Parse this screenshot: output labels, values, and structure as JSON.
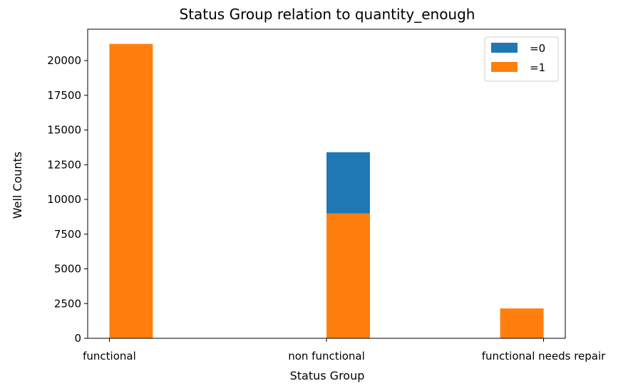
{
  "chart_data": {
    "type": "bar",
    "title": "Status Group relation to quantity_enough",
    "xlabel": "Status Group",
    "ylabel": "Well Counts",
    "categories": [
      "functional",
      "non functional",
      "functional needs repair"
    ],
    "x_bin_edges": [
      0,
      0.2,
      0.4,
      0.6,
      0.8,
      1.0,
      1.2,
      1.4,
      1.6,
      1.8,
      2.0
    ],
    "ylim": [
      0,
      22260
    ],
    "yticks": [
      0,
      2500,
      5000,
      7500,
      10000,
      12500,
      15000,
      17500,
      20000
    ],
    "grid": false,
    "legend_position": "top-right",
    "series": [
      {
        "name": "=0",
        "color": "#1f77b4",
        "values": [
          0,
          13400,
          0
        ]
      },
      {
        "name": "=1",
        "color": "#ff7f0e",
        "values": [
          21200,
          9000,
          2150
        ]
      }
    ]
  }
}
